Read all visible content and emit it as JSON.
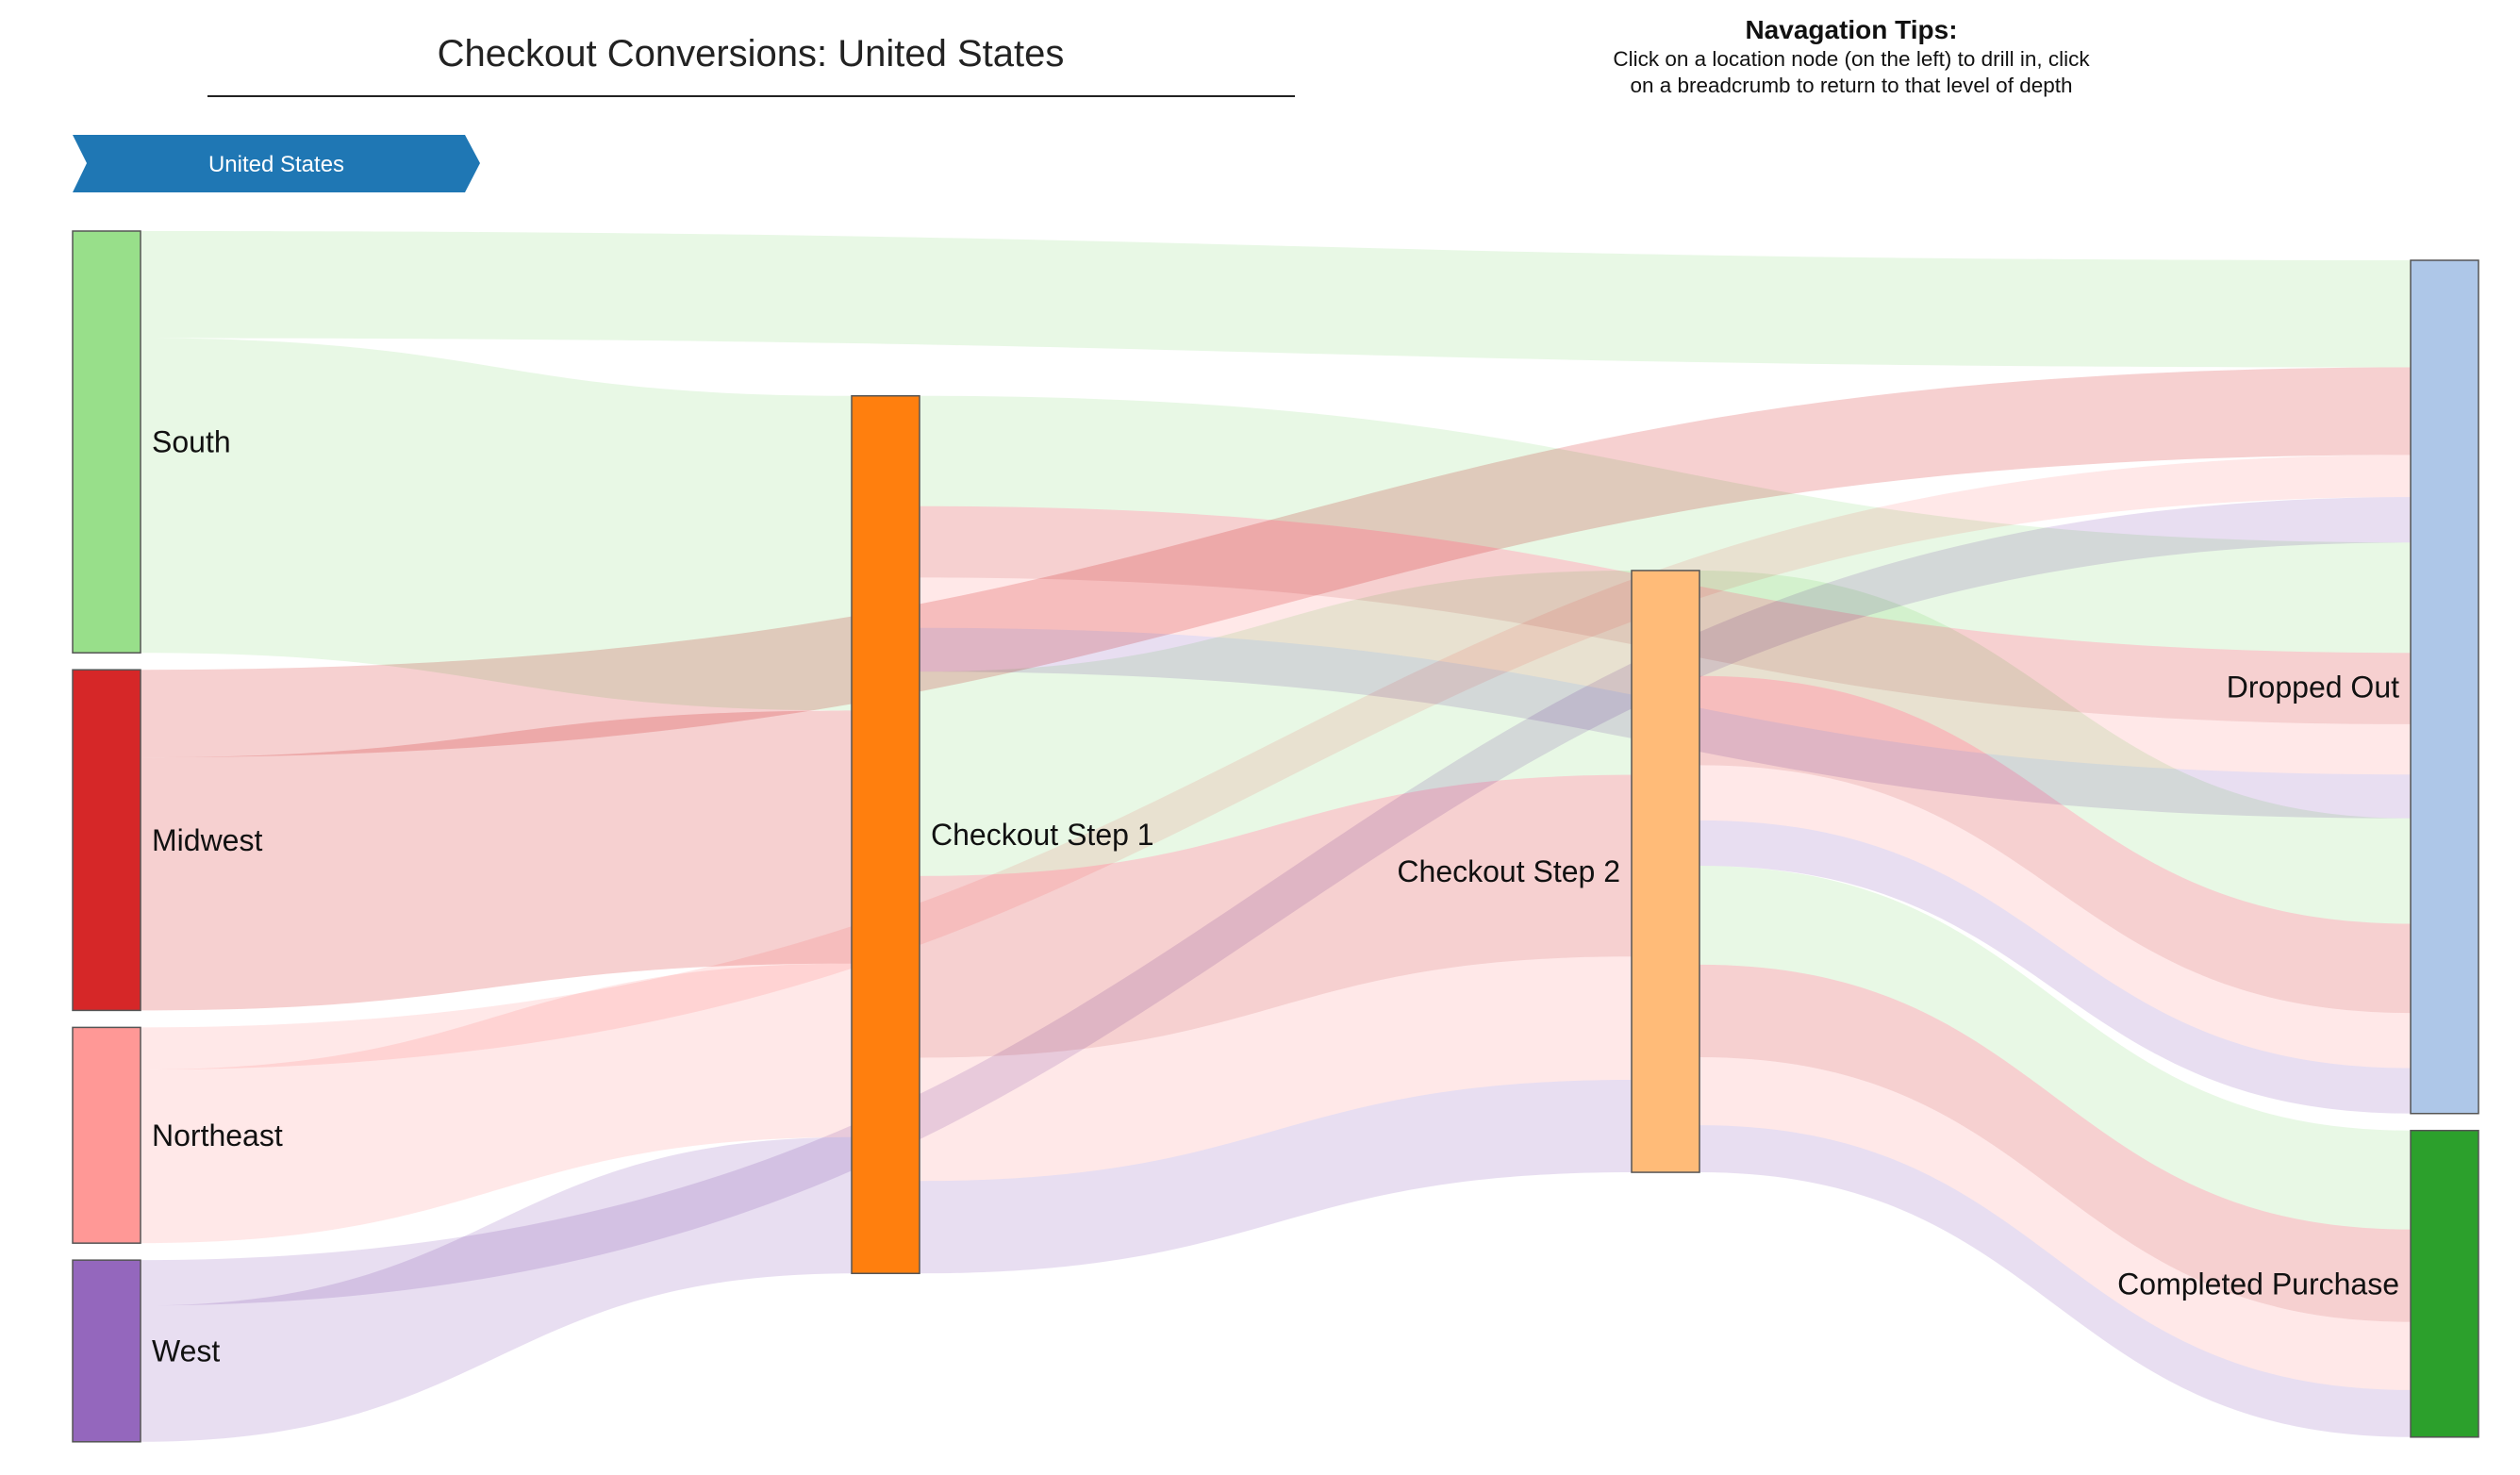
{
  "header": {
    "title": "Checkout Conversions: United States"
  },
  "tips": {
    "heading": "Navagation Tips:",
    "line1": "Click on a location node (on the left) to drill in, click",
    "line2": "on a breadcrumb to return to that level of depth"
  },
  "breadcrumb": {
    "items": [
      "United States"
    ],
    "color": "#1f77b4"
  },
  "chart_data": {
    "type": "sankey",
    "title": "Checkout Conversions: United States",
    "nodes": [
      {
        "id": "south",
        "label": "South",
        "color": "#98df8a"
      },
      {
        "id": "midwest",
        "label": "Midwest",
        "color": "#d62728"
      },
      {
        "id": "northeast",
        "label": "Northeast",
        "color": "#ff9896"
      },
      {
        "id": "west",
        "label": "West",
        "color": "#9467bd"
      },
      {
        "id": "step1",
        "label": "Checkout Step 1",
        "color": "#ff7f0e"
      },
      {
        "id": "step2",
        "label": "Checkout Step 2",
        "color": "#ffbb78"
      },
      {
        "id": "dropped",
        "label": "Dropped Out",
        "color": "#aec7e8"
      },
      {
        "id": "completed",
        "label": "Completed Purchase",
        "color": "#2ca02c"
      }
    ],
    "links": [
      {
        "source": "south",
        "target": "dropped",
        "value": 66,
        "region": "south"
      },
      {
        "source": "south",
        "target": "step1",
        "value": 194,
        "region": "south"
      },
      {
        "source": "midwest",
        "target": "dropped",
        "value": 54,
        "region": "midwest"
      },
      {
        "source": "midwest",
        "target": "step1",
        "value": 156,
        "region": "midwest"
      },
      {
        "source": "northeast",
        "target": "dropped",
        "value": 26,
        "region": "northeast"
      },
      {
        "source": "northeast",
        "target": "step1",
        "value": 107,
        "region": "northeast"
      },
      {
        "source": "west",
        "target": "dropped",
        "value": 28,
        "region": "west"
      },
      {
        "source": "west",
        "target": "step1",
        "value": 84,
        "region": "west"
      },
      {
        "source": "step1",
        "target": "dropped",
        "value": 68,
        "region": "south"
      },
      {
        "source": "step1",
        "target": "dropped",
        "value": 44,
        "region": "midwest"
      },
      {
        "source": "step1",
        "target": "dropped",
        "value": 31,
        "region": "northeast"
      },
      {
        "source": "step1",
        "target": "dropped",
        "value": 27,
        "region": "west"
      },
      {
        "source": "step1",
        "target": "step2",
        "value": 126,
        "region": "south"
      },
      {
        "source": "step1",
        "target": "step2",
        "value": 112,
        "region": "midwest"
      },
      {
        "source": "step1",
        "target": "step2",
        "value": 76,
        "region": "northeast"
      },
      {
        "source": "step1",
        "target": "step2",
        "value": 57,
        "region": "west"
      },
      {
        "source": "step2",
        "target": "dropped",
        "value": 65,
        "region": "south"
      },
      {
        "source": "step2",
        "target": "dropped",
        "value": 55,
        "region": "midwest"
      },
      {
        "source": "step2",
        "target": "dropped",
        "value": 34,
        "region": "northeast"
      },
      {
        "source": "step2",
        "target": "dropped",
        "value": 28,
        "region": "west"
      },
      {
        "source": "step2",
        "target": "completed",
        "value": 61,
        "region": "south"
      },
      {
        "source": "step2",
        "target": "completed",
        "value": 57,
        "region": "midwest"
      },
      {
        "source": "step2",
        "target": "completed",
        "value": 42,
        "region": "northeast"
      },
      {
        "source": "step2",
        "target": "completed",
        "value": 29,
        "region": "west"
      }
    ]
  }
}
